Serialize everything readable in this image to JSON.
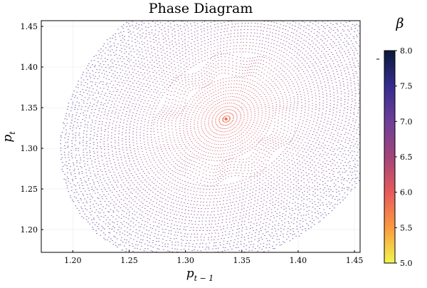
{
  "chart_data": {
    "type": "scatter",
    "title": "Phase Diagram",
    "xlabel": "p_{t-1}",
    "ylabel": "p_t",
    "xlim": [
      1.172,
      1.455
    ],
    "ylim": [
      1.172,
      1.457
    ],
    "x_ticks": [
      1.2,
      1.25,
      1.3,
      1.35,
      1.4,
      1.45
    ],
    "y_ticks": [
      1.2,
      1.25,
      1.3,
      1.35,
      1.4,
      1.45
    ],
    "x_tick_labels": [
      "1.20",
      "1.25",
      "1.30",
      "1.35",
      "1.40",
      "1.45"
    ],
    "y_tick_labels": [
      "1.20",
      "1.25",
      "1.30",
      "1.35",
      "1.40",
      "1.45"
    ],
    "grid": true,
    "legend": "top-right, single empty entry",
    "legend_entries": [
      ""
    ],
    "series": [
      {
        "kind": "orbit-cloud",
        "center": [
          1.336,
          1.336
        ],
        "outer_points": [
          [
            1.178,
            1.228
          ],
          [
            1.445,
            1.442
          ],
          [
            1.254,
            1.18
          ],
          [
            1.403,
            1.446
          ]
        ],
        "color_by": "beta",
        "beta_range_in_cloud": [
          5.8,
          7.2
        ]
      }
    ],
    "colorbar": {
      "label": "β",
      "range": [
        5.0,
        8.0
      ],
      "ticks": [
        5.0,
        5.5,
        6.0,
        6.5,
        7.0,
        7.5,
        8.0
      ],
      "tick_labels": [
        "5.0",
        "5.5",
        "6.0",
        "6.5",
        "7.0",
        "7.5",
        "8.0"
      ],
      "colormap": "thermal",
      "colors": [
        "#f0f74c",
        "#fb9a3f",
        "#e75a5c",
        "#a3447a",
        "#6d3f99",
        "#352c8f",
        "#0a1a3a"
      ]
    }
  }
}
